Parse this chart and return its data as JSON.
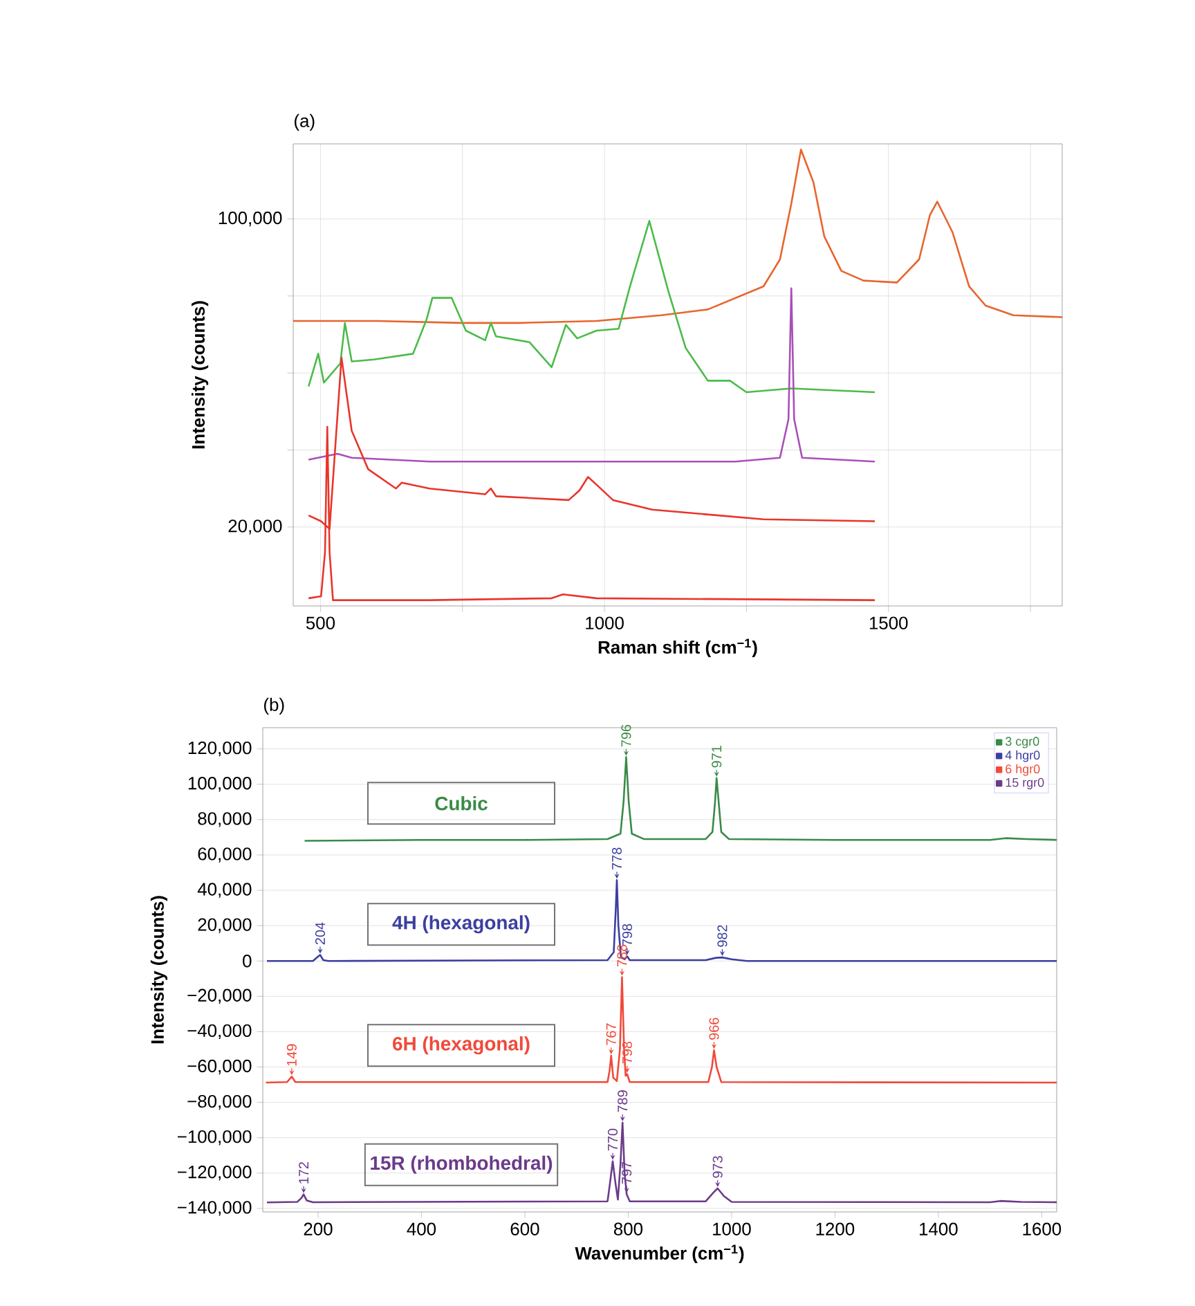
{
  "chart_data": [
    {
      "type": "line",
      "title": "(a)",
      "xlabel": "Raman shift (cm$^{−1}$)",
      "ylabel": "Intensity (counts)",
      "xlim": [
        452,
        1806
      ],
      "ylim": [
        -500,
        119500
      ],
      "xticks": [
        500,
        {
          "value": 750,
          "label": null
        },
        1000,
        {
          "value": 1250,
          "label": null
        },
        1500,
        {
          "value": 1750,
          "label": null
        }
      ],
      "yticks": [
        {
          "value": 20000,
          "label": "20,000"
        },
        {
          "value": 40000,
          "label": null
        },
        {
          "value": 60000,
          "label": null
        },
        {
          "value": 80000,
          "label": null
        },
        {
          "value": 100000,
          "label": "100,000"
        }
      ],
      "grid": true,
      "legend": false,
      "marker": "none",
      "series": [
        {
          "color": "#e8642c",
          "x": [
            452,
            600,
            750,
            850,
            986,
            1100,
            1182,
            1280,
            1309,
            1329,
            1346,
            1368,
            1387,
            1417,
            1456,
            1515,
            1554,
            1573,
            1586,
            1613,
            1642,
            1671,
            1720,
            1806
          ],
          "values": [
            73500,
            73500,
            73000,
            73000,
            73500,
            75000,
            76500,
            82500,
            89500,
            104000,
            118000,
            109500,
            95500,
            86500,
            84000,
            83500,
            89500,
            101000,
            104500,
            96500,
            82500,
            77500,
            75000,
            74500
          ]
        },
        {
          "color": "#4cbb4a",
          "x": [
            479,
            496,
            506,
            535,
            543,
            555,
            594,
            663,
            687,
            697,
            731,
            756,
            790,
            800,
            809,
            868,
            907,
            932,
            952,
            986,
            1025,
            1045,
            1079,
            1113,
            1143,
            1182,
            1221,
            1250,
            1329,
            1476
          ],
          "values": [
            56500,
            65000,
            57500,
            62500,
            73000,
            63000,
            63500,
            65000,
            74000,
            79500,
            79500,
            71000,
            68500,
            73000,
            69500,
            68000,
            61500,
            72500,
            69000,
            71000,
            71500,
            82500,
            99500,
            81000,
            66500,
            58000,
            58000,
            55000,
            56000,
            55000
          ]
        },
        {
          "color": "#a94fb8",
          "x": [
            479,
            530,
            555,
            692,
            986,
            1231,
            1309,
            1324,
            1329,
            1334,
            1348,
            1476
          ],
          "values": [
            37500,
            39000,
            38000,
            37000,
            37000,
            37000,
            38000,
            48000,
            82000,
            48000,
            38000,
            37000
          ]
        },
        {
          "color": "#e8352a",
          "x": [
            479,
            501,
            516,
            537,
            555,
            584,
            633,
            643,
            692,
            790,
            800,
            809,
            937,
            956,
            971,
            986,
            1015,
            1084,
            1280,
            1476
          ],
          "values": [
            23000,
            21500,
            19500,
            64000,
            45000,
            35000,
            30000,
            31500,
            30000,
            28500,
            30000,
            28000,
            27000,
            29500,
            33000,
            31000,
            27000,
            24500,
            22000,
            21500
          ]
        },
        {
          "color": "#e8352a",
          "x": [
            479,
            501,
            508,
            512,
            516,
            522,
            692,
            907,
            927,
            986,
            1476
          ],
          "values": [
            1500,
            2000,
            13500,
            46000,
            13500,
            1000,
            1000,
            1500,
            2500,
            1500,
            1000
          ]
        }
      ]
    },
    {
      "type": "line",
      "title": "(b)",
      "xlabel": "Wavenumber (cm$^{−1}$)",
      "ylabel": "Intensity (counts)",
      "xlim": [
        93,
        1629
      ],
      "ylim": [
        -142000,
        132000
      ],
      "xticks": [
        200,
        400,
        600,
        800,
        1000,
        1200,
        1400,
        1600
      ],
      "yticks": [
        {
          "value": -140000,
          "label": "−140,000"
        },
        {
          "value": -120000,
          "label": "−120,000"
        },
        {
          "value": -100000,
          "label": "−100,000"
        },
        {
          "value": -80000,
          "label": "−80,000"
        },
        {
          "value": -60000,
          "label": "−60,000"
        },
        {
          "value": -40000,
          "label": "−40,000"
        },
        {
          "value": -20000,
          "label": "−20,000"
        },
        0,
        {
          "value": 20000,
          "label": "20,000"
        },
        {
          "value": 40000,
          "label": "40,000"
        },
        {
          "value": 60000,
          "label": "60,000"
        },
        {
          "value": 80000,
          "label": "80,000"
        },
        {
          "value": 100000,
          "label": "100,000"
        },
        {
          "value": 120000,
          "label": "120,000"
        }
      ],
      "grid": "y",
      "legend": "top right",
      "marker": "none",
      "series": [
        {
          "name": "3 cgr0",
          "color": "#3a8a48",
          "x": [
            174,
            400,
            600,
            760,
            785,
            791,
            796,
            801,
            807,
            830,
            950,
            963,
            968,
            971,
            975,
            980,
            995,
            1200,
            1500,
            1530,
            1570,
            1629
          ],
          "values": [
            68000,
            68500,
            68500,
            69000,
            72000,
            90000,
            115300,
            90000,
            72000,
            69000,
            69000,
            73000,
            90000,
            103500,
            90000,
            73000,
            69000,
            68500,
            68500,
            69500,
            69000,
            68500
          ]
        },
        {
          "name": "4 hgr0",
          "color": "#3b3fa0",
          "x": [
            101,
            190,
            200,
            204,
            210,
            220,
            760,
            772,
            776,
            778,
            781,
            786,
            793,
            798,
            803,
            950,
            970,
            982,
            1000,
            1030,
            1629
          ],
          "values": [
            0,
            0,
            2500,
            3400,
            500,
            0,
            500,
            5000,
            30000,
            45800,
            20000,
            2000,
            1000,
            2600,
            500,
            500,
            1800,
            2000,
            1000,
            0,
            0
          ]
        },
        {
          "name": "6 hgr0",
          "color": "#f04a3a",
          "x": [
            99,
            140,
            149,
            156,
            760,
            764,
            767,
            771,
            778,
            784,
            788,
            792,
            795,
            798,
            803,
            955,
            962,
            966,
            971,
            980,
            1629
          ],
          "values": [
            -68800,
            -68500,
            -65400,
            -68500,
            -68500,
            -62000,
            -53600,
            -66000,
            -68000,
            -50000,
            -9100,
            -50000,
            -65000,
            -64000,
            -68500,
            -68500,
            -60000,
            -50500,
            -60000,
            -68500,
            -68800
          ]
        },
        {
          "name": "15 rgr0",
          "color": "#6b3a8a",
          "x": [
            101,
            160,
            168,
            172,
            178,
            190,
            760,
            765,
            770,
            775,
            780,
            785,
            789,
            793,
            797,
            803,
            950,
            965,
            973,
            985,
            1000,
            1500,
            1520,
            1560,
            1629
          ],
          "values": [
            -136600,
            -136300,
            -134000,
            -132100,
            -135500,
            -136500,
            -136000,
            -125000,
            -113300,
            -125000,
            -135000,
            -115000,
            -91500,
            -120000,
            -132000,
            -136000,
            -136000,
            -131000,
            -128700,
            -133000,
            -136300,
            -136500,
            -135800,
            -136300,
            -136500
          ]
        }
      ],
      "annotations": [
        "Cubic",
        "4H (hexagonal)",
        "6H (hexagonal)",
        "15R (rhombohedral)",
        {
          "text": "796",
          "x": 796,
          "y": 115300
        },
        {
          "text": "971",
          "x": 971,
          "y": 103500
        },
        {
          "text": "204",
          "x": 204,
          "y": 3400
        },
        {
          "text": "778",
          "x": 778,
          "y": 45800
        },
        {
          "text": "798",
          "x": 798,
          "y": 2600
        },
        {
          "text": "982",
          "x": 982,
          "y": 2000
        },
        {
          "text": "149",
          "x": 149,
          "y": -65400
        },
        {
          "text": "767",
          "x": 767,
          "y": -53600
        },
        {
          "text": "788",
          "x": 788,
          "y": -9100
        },
        {
          "text": "798",
          "x": 798,
          "y": -64000
        },
        {
          "text": "966",
          "x": 966,
          "y": -50500
        },
        {
          "text": "172",
          "x": 172,
          "y": -132100
        },
        {
          "text": "770",
          "x": 770,
          "y": -113300
        },
        {
          "text": "789",
          "x": 789,
          "y": -91500
        },
        {
          "text": "797",
          "x": 797,
          "y": -132000
        },
        {
          "text": "973",
          "x": 973,
          "y": -128700
        }
      ]
    }
  ]
}
